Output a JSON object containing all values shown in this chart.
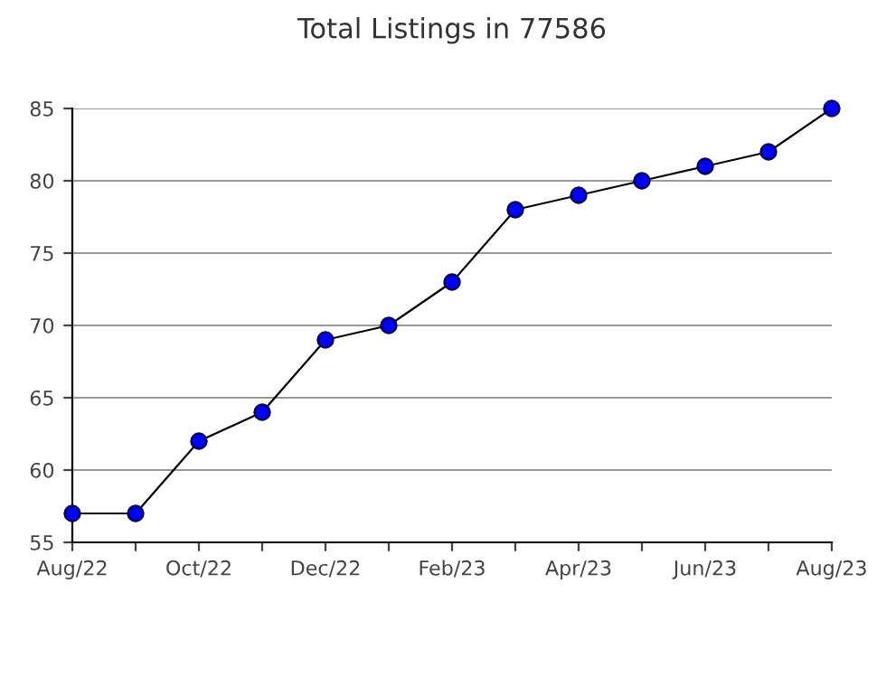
{
  "chart_data": {
    "type": "line",
    "title": "Total Listings in 77586",
    "categories": [
      "Aug/22",
      null,
      "Oct/22",
      null,
      "Dec/22",
      null,
      "Feb/23",
      null,
      "Apr/23",
      null,
      "Jun/23",
      null,
      "Aug/23"
    ],
    "series": [
      {
        "color": "#0000ff",
        "values": [
          57,
          57,
          62,
          64,
          69,
          70,
          73,
          78,
          79,
          80,
          81,
          82,
          85
        ]
      }
    ],
    "ylim": [
      55,
      85
    ],
    "yticks": [
      55,
      60,
      65,
      70,
      75,
      80,
      85
    ],
    "grid": "y",
    "marker": "circle",
    "line_style": "solid",
    "legend": false
  }
}
